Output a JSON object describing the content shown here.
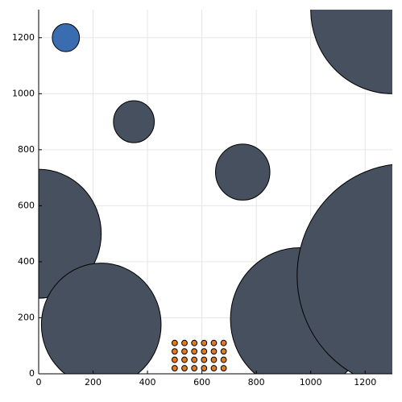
{
  "chart_data": {
    "type": "scatter",
    "xlim": [
      0,
      1300
    ],
    "ylim": [
      0,
      1300
    ],
    "xticks": [
      0,
      200,
      400,
      600,
      800,
      1000,
      1200
    ],
    "yticks": [
      0,
      200,
      400,
      600,
      800,
      1000,
      1200
    ],
    "grid": true,
    "series": [
      {
        "color": "#46505e",
        "x": [
          1300,
          350,
          750,
          0,
          230,
          960,
          1350
        ],
        "y": [
          1300,
          900,
          720,
          500,
          175,
          195,
          350
        ],
        "sizes": [
          300,
          75,
          100,
          230,
          220,
          255,
          400
        ]
      },
      {
        "color": "#3a6db0",
        "x": [
          100
        ],
        "y": [
          1200
        ],
        "sizes": [
          50
        ]
      },
      {
        "color": "#e07b20",
        "x": [
          500,
          536,
          572,
          608,
          644,
          680,
          500,
          536,
          572,
          608,
          644,
          680,
          500,
          536,
          572,
          608,
          644,
          680,
          500,
          536,
          572,
          608,
          644,
          680
        ],
        "y": [
          20,
          20,
          20,
          20,
          20,
          20,
          50,
          50,
          50,
          50,
          50,
          50,
          80,
          80,
          80,
          80,
          80,
          80,
          110,
          110,
          110,
          110,
          110,
          110
        ],
        "sizes": [
          10,
          10,
          10,
          10,
          10,
          10,
          10,
          10,
          10,
          10,
          10,
          10,
          10,
          10,
          10,
          10,
          10,
          10,
          10,
          10,
          10,
          10,
          10,
          10
        ]
      }
    ]
  }
}
